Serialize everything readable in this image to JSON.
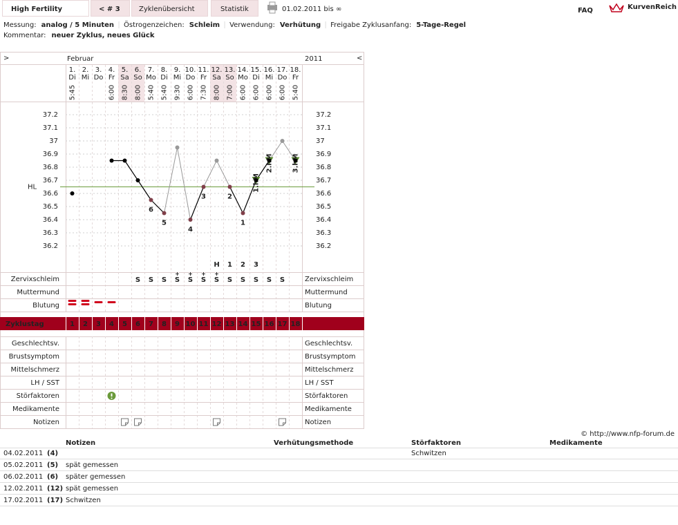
{
  "header": {
    "title": "High Fertility",
    "cycle": "< # 3",
    "tabs": [
      "Zyklenübersicht",
      "Statistik"
    ],
    "period": "01.02.2011 bis ∞",
    "faq": "FAQ",
    "brand": "KurvenReich"
  },
  "info": {
    "items": [
      {
        "label": "Messung:",
        "value": "analog / 5 Minuten"
      },
      {
        "label": "Östrogenzeichen:",
        "value": "Schleim"
      },
      {
        "label": "Verwendung:",
        "value": "Verhütung"
      },
      {
        "label": "Freigabe Zyklusanfang:",
        "value": "5-Tage-Regel"
      }
    ],
    "comment": {
      "label": "Kommentar:",
      "value": "neuer Zyklus, neues Glück"
    }
  },
  "grid": {
    "prev": ">",
    "next": "<",
    "month": "Februar",
    "year": "2011",
    "days": [
      {
        "date": "1.",
        "weekday": "Di",
        "time": "5:45"
      },
      {
        "date": "2.",
        "weekday": "Mi"
      },
      {
        "date": "3.",
        "weekday": "Do"
      },
      {
        "date": "4.",
        "weekday": "Fr",
        "time": "6:00"
      },
      {
        "date": "5.",
        "weekday": "Sa",
        "time": "8:30",
        "shaded": true
      },
      {
        "date": "6.",
        "weekday": "So",
        "time": "8:00",
        "shaded": true
      },
      {
        "date": "7.",
        "weekday": "Mo",
        "time": "5:40"
      },
      {
        "date": "8.",
        "weekday": "Di",
        "time": "5:40"
      },
      {
        "date": "9.",
        "weekday": "Mi",
        "time": "9:30"
      },
      {
        "date": "10.",
        "weekday": "Do",
        "time": "6:00"
      },
      {
        "date": "11.",
        "weekday": "Fr",
        "time": "7:30"
      },
      {
        "date": "12.",
        "weekday": "Sa",
        "time": "8:00",
        "shaded": true
      },
      {
        "date": "13.",
        "weekday": "So",
        "time": "7:00",
        "shaded": true
      },
      {
        "date": "14.",
        "weekday": "Mo",
        "time": "6:00"
      },
      {
        "date": "15.",
        "weekday": "Di",
        "time": "6:00"
      },
      {
        "date": "16.",
        "weekday": "Mi",
        "time": "6:00"
      },
      {
        "date": "17.",
        "weekday": "Do",
        "time": "6:00"
      },
      {
        "date": "18.",
        "weekday": "Fr",
        "time": "5:40"
      }
    ]
  },
  "cervix": {
    "label": "Zervixschleim",
    "color": "#e08a00",
    "top": [
      null,
      null,
      null,
      null,
      null,
      null,
      null,
      null,
      null,
      null,
      null,
      "H",
      "1",
      "2",
      "3",
      null,
      null,
      null
    ],
    "values": [
      null,
      null,
      null,
      null,
      null,
      "S",
      "S",
      "S",
      "S+",
      "S+",
      "S+",
      "S+",
      "S",
      "S",
      "S",
      "S",
      "S",
      null
    ]
  },
  "os": {
    "label": "Muttermund",
    "color": "#4a58c0"
  },
  "bleeding": {
    "label": "Blutung",
    "color": "#d0001c",
    "values": [
      2,
      2,
      1,
      1,
      null,
      null,
      null,
      null,
      null,
      null,
      null,
      null,
      null,
      null,
      null,
      null,
      null,
      null
    ]
  },
  "cycle_day_label": "Zyklustag",
  "rows": [
    {
      "label": "Geschlechtsv."
    },
    {
      "label": "Brustsymptom"
    },
    {
      "label": "Mittelschmerz"
    },
    {
      "label": "LH / SST"
    },
    {
      "label": "Störfaktoren",
      "icon": "alert",
      "days": [
        4
      ]
    },
    {
      "label": "Medikamente"
    },
    {
      "label": "Notizen",
      "icon": "note",
      "days": [
        5,
        6,
        12,
        17
      ]
    }
  ],
  "chart_data": {
    "type": "line",
    "categories": [
      1,
      2,
      3,
      4,
      5,
      6,
      7,
      8,
      9,
      10,
      11,
      12,
      13,
      14,
      15,
      16,
      17,
      18
    ],
    "values": [
      36.6,
      null,
      null,
      36.85,
      36.85,
      36.7,
      36.55,
      36.45,
      36.95,
      36.4,
      36.65,
      36.85,
      36.65,
      36.45,
      36.7,
      36.85,
      37,
      36.85
    ],
    "excluded": [
      false,
      false,
      false,
      false,
      false,
      false,
      false,
      false,
      true,
      false,
      false,
      true,
      false,
      false,
      false,
      false,
      true,
      false
    ],
    "point_labels": [
      null,
      null,
      null,
      null,
      null,
      null,
      "6",
      "5",
      null,
      "4",
      "3",
      null,
      "2",
      "1",
      null,
      null,
      null,
      null
    ],
    "high_labels": [
      null,
      null,
      null,
      null,
      null,
      null,
      null,
      null,
      null,
      null,
      null,
      null,
      null,
      null,
      "1.hM",
      "2.hM",
      null,
      "3.hM"
    ],
    "color": "#000000",
    "excluded_color": "#999999",
    "low_color": "#80404a",
    "high_color": "#5a8a30",
    "coverline": {
      "label": "HL",
      "value": 36.65,
      "color": "#6a9a3a"
    },
    "ylim": [
      36.0,
      37.3
    ],
    "yticks": [
      36.2,
      36.3,
      36.4,
      36.5,
      36.6,
      36.7,
      36.8,
      36.9,
      37,
      37.1,
      37.2
    ],
    "grid": true
  },
  "notes": {
    "copyright": "© http://www.nfp-forum.de",
    "columns": [
      "Notizen",
      "Verhütungsmethode",
      "Störfaktoren",
      "Medikamente"
    ],
    "rows": [
      {
        "date": "04.02.2011",
        "day": "(4)",
        "disturbance": "Schwitzen"
      },
      {
        "date": "05.02.2011",
        "day": "(5)",
        "note": "spät gemessen"
      },
      {
        "date": "06.02.2011",
        "day": "(6)",
        "note": "später gemessen"
      },
      {
        "date": "12.02.2011",
        "day": "(12)",
        "note": "spät gemessen"
      },
      {
        "date": "17.02.2011",
        "day": "(17)",
        "note": "Schwitzen"
      }
    ]
  }
}
